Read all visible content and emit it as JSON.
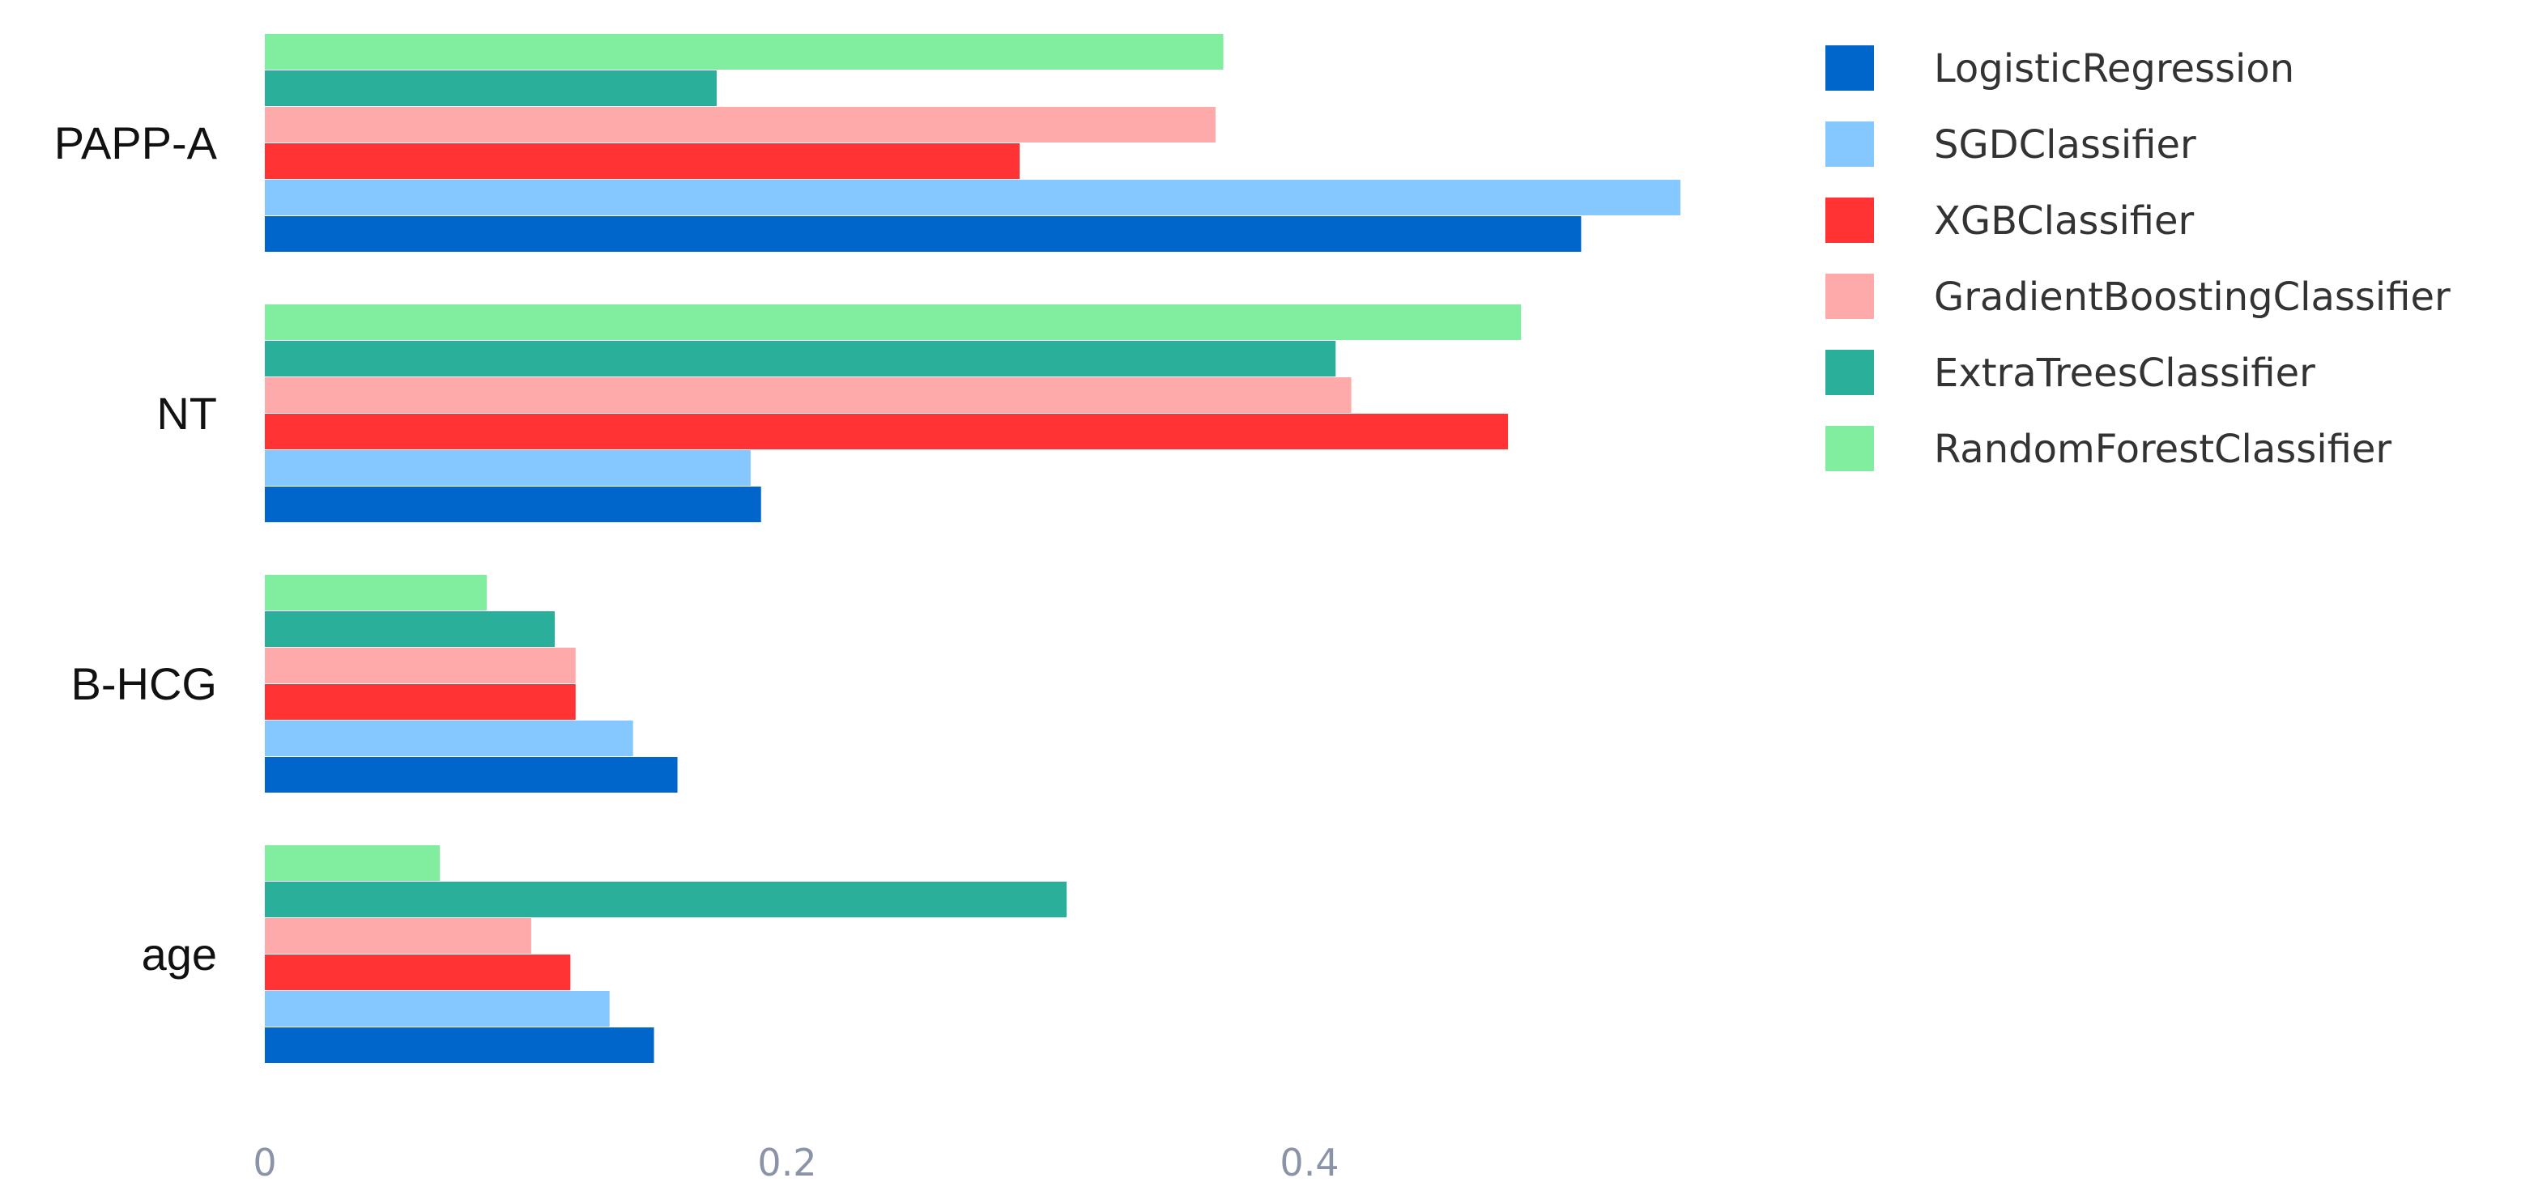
{
  "chart_data": {
    "type": "bar",
    "orientation": "horizontal",
    "categories": [
      "PAPP-A",
      "NT",
      "B-HCG",
      "age"
    ],
    "series": [
      {
        "name": "LogisticRegression",
        "color": "#0066cc",
        "values": [
          0.504,
          0.19,
          0.158,
          0.149
        ]
      },
      {
        "name": "SGDClassifier",
        "color": "#85c8ff",
        "values": [
          0.542,
          0.186,
          0.141,
          0.132
        ]
      },
      {
        "name": "XGBClassifier",
        "color": "#ff3333",
        "values": [
          0.289,
          0.476,
          0.119,
          0.117
        ]
      },
      {
        "name": "GradientBoostingClassifier",
        "color": "#ffaaaa",
        "values": [
          0.364,
          0.416,
          0.119,
          0.102
        ]
      },
      {
        "name": "ExtraTreesClassifier",
        "color": "#2ab09a",
        "values": [
          0.173,
          0.41,
          0.111,
          0.307
        ]
      },
      {
        "name": "RandomForestClassifier",
        "color": "#80ee9e",
        "values": [
          0.367,
          0.481,
          0.085,
          0.067
        ]
      }
    ],
    "x_ticks": [
      "0",
      "0.2",
      "0.4"
    ],
    "xlim": [
      0,
      0.55
    ],
    "grid": false,
    "legend_position": "top-right"
  }
}
